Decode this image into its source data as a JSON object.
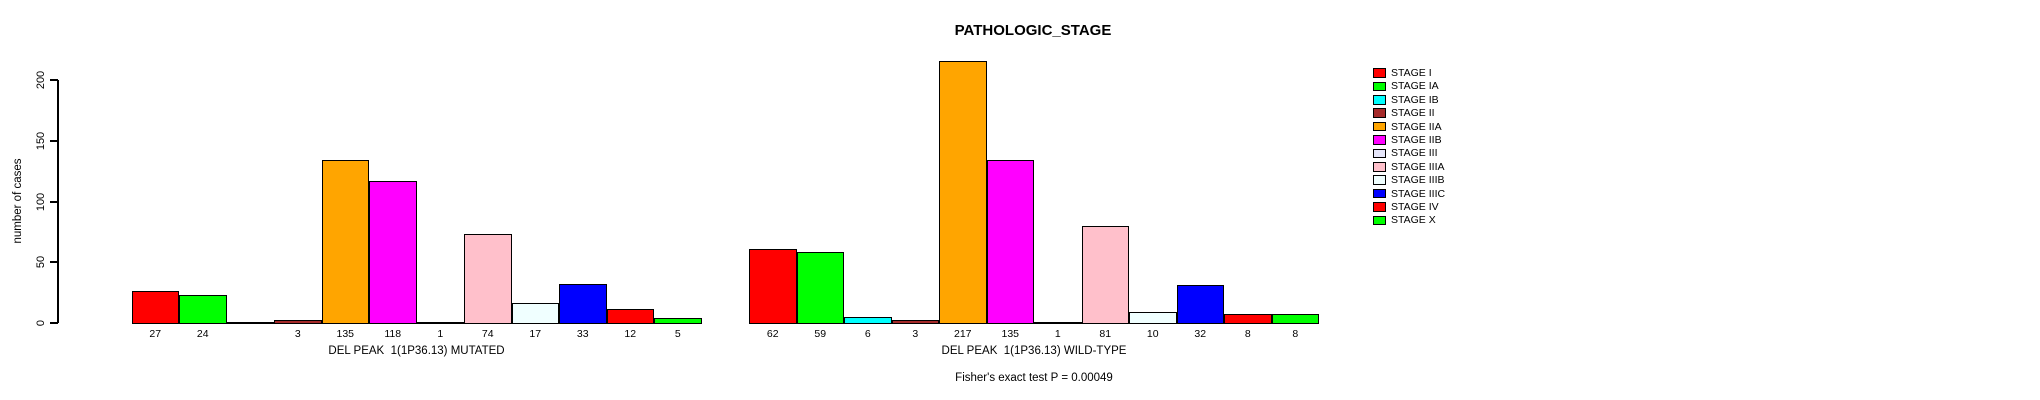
{
  "title": "PATHOLOGIC_STAGE",
  "annotation": "Fisher's exact test P = 0.00049",
  "axis": {
    "ylabel": "number of cases",
    "yticks": [
      0,
      50,
      100,
      150,
      200
    ]
  },
  "legend": {
    "position": "right",
    "items": [
      {
        "label": "STAGE I",
        "color": "#FF0000"
      },
      {
        "label": "STAGE IA",
        "color": "#00FF00"
      },
      {
        "label": "STAGE IB",
        "color": "#00FFFF"
      },
      {
        "label": "STAGE II",
        "color": "#A52A2A"
      },
      {
        "label": "STAGE IIA",
        "color": "#FFA500"
      },
      {
        "label": "STAGE IIB",
        "color": "#FF00FF"
      },
      {
        "label": "STAGE III",
        "color": "#E6E6FA"
      },
      {
        "label": "STAGE IIIA",
        "color": "#FFC0CB"
      },
      {
        "label": "STAGE IIIB",
        "color": "#F0FFFF"
      },
      {
        "label": "STAGE IIIC",
        "color": "#0000FF"
      },
      {
        "label": "STAGE IV",
        "color": "#FF0000"
      },
      {
        "label": "STAGE X",
        "color": "#00FF00"
      }
    ]
  },
  "chart_data": {
    "type": "bar",
    "title": "PATHOLOGIC_STAGE",
    "xlabel": "",
    "ylabel": "number of cases",
    "ylim": [
      0,
      220
    ],
    "grid": false,
    "legend_position": "right",
    "categories": [
      "STAGE I",
      "STAGE IA",
      "STAGE IB",
      "STAGE II",
      "STAGE IIA",
      "STAGE IIB",
      "STAGE III",
      "STAGE IIIA",
      "STAGE IIIB",
      "STAGE IIIC",
      "STAGE IV",
      "STAGE X"
    ],
    "colors": [
      "#FF0000",
      "#00FF00",
      "#00FFFF",
      "#A52A2A",
      "#FFA500",
      "#FF00FF",
      "#E6E6FA",
      "#FFC0CB",
      "#F0FFFF",
      "#0000FF",
      "#FF0000",
      "#00FF00"
    ],
    "series": [
      {
        "name": "DEL PEAK  1(1P36.13) MUTATED",
        "values": [
          27,
          24,
          null,
          3,
          135,
          118,
          1,
          74,
          17,
          33,
          12,
          5
        ]
      },
      {
        "name": "DEL PEAK  1(1P36.13) WILD-TYPE",
        "values": [
          62,
          59,
          6,
          3,
          217,
          135,
          1,
          81,
          10,
          32,
          8,
          8
        ]
      }
    ],
    "annotation": "Fisher's exact test P = 0.00049"
  }
}
